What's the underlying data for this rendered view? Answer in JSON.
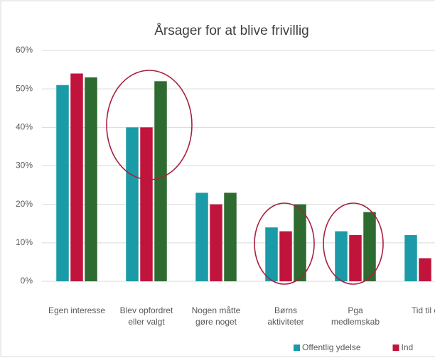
{
  "chart_data": {
    "type": "bar",
    "title": "Årsager for at blive frivillig",
    "categories": [
      [
        "Egen interesse"
      ],
      [
        "Blev opfordret",
        "eller valgt"
      ],
      [
        "Nogen måtte",
        "gøre noget"
      ],
      [
        "Børns",
        "aktiviteter"
      ],
      [
        "Pga",
        "medlemskab"
      ],
      [
        "Tid til e"
      ]
    ],
    "series": [
      {
        "name": "Offentlig ydelse",
        "color": "#1a9ba7",
        "values": [
          51,
          40,
          23,
          14,
          13,
          12
        ]
      },
      {
        "name": "Ind",
        "color": "#c0143c",
        "values": [
          54,
          40,
          20,
          13,
          12,
          6
        ]
      },
      {
        "color": "#2e6b30",
        "values": [
          53,
          52,
          23,
          20,
          18,
          null
        ]
      }
    ],
    "ylim": [
      0,
      60
    ],
    "yticks": [
      {
        "value": 0,
        "label": "0%"
      },
      {
        "value": 10,
        "label": "10%"
      },
      {
        "value": 20,
        "label": "20%"
      },
      {
        "value": 30,
        "label": "30%"
      },
      {
        "value": 40,
        "label": "40%"
      },
      {
        "value": 50,
        "label": "50%"
      },
      {
        "value": 60,
        "label": "60%"
      }
    ],
    "grid": true
  }
}
